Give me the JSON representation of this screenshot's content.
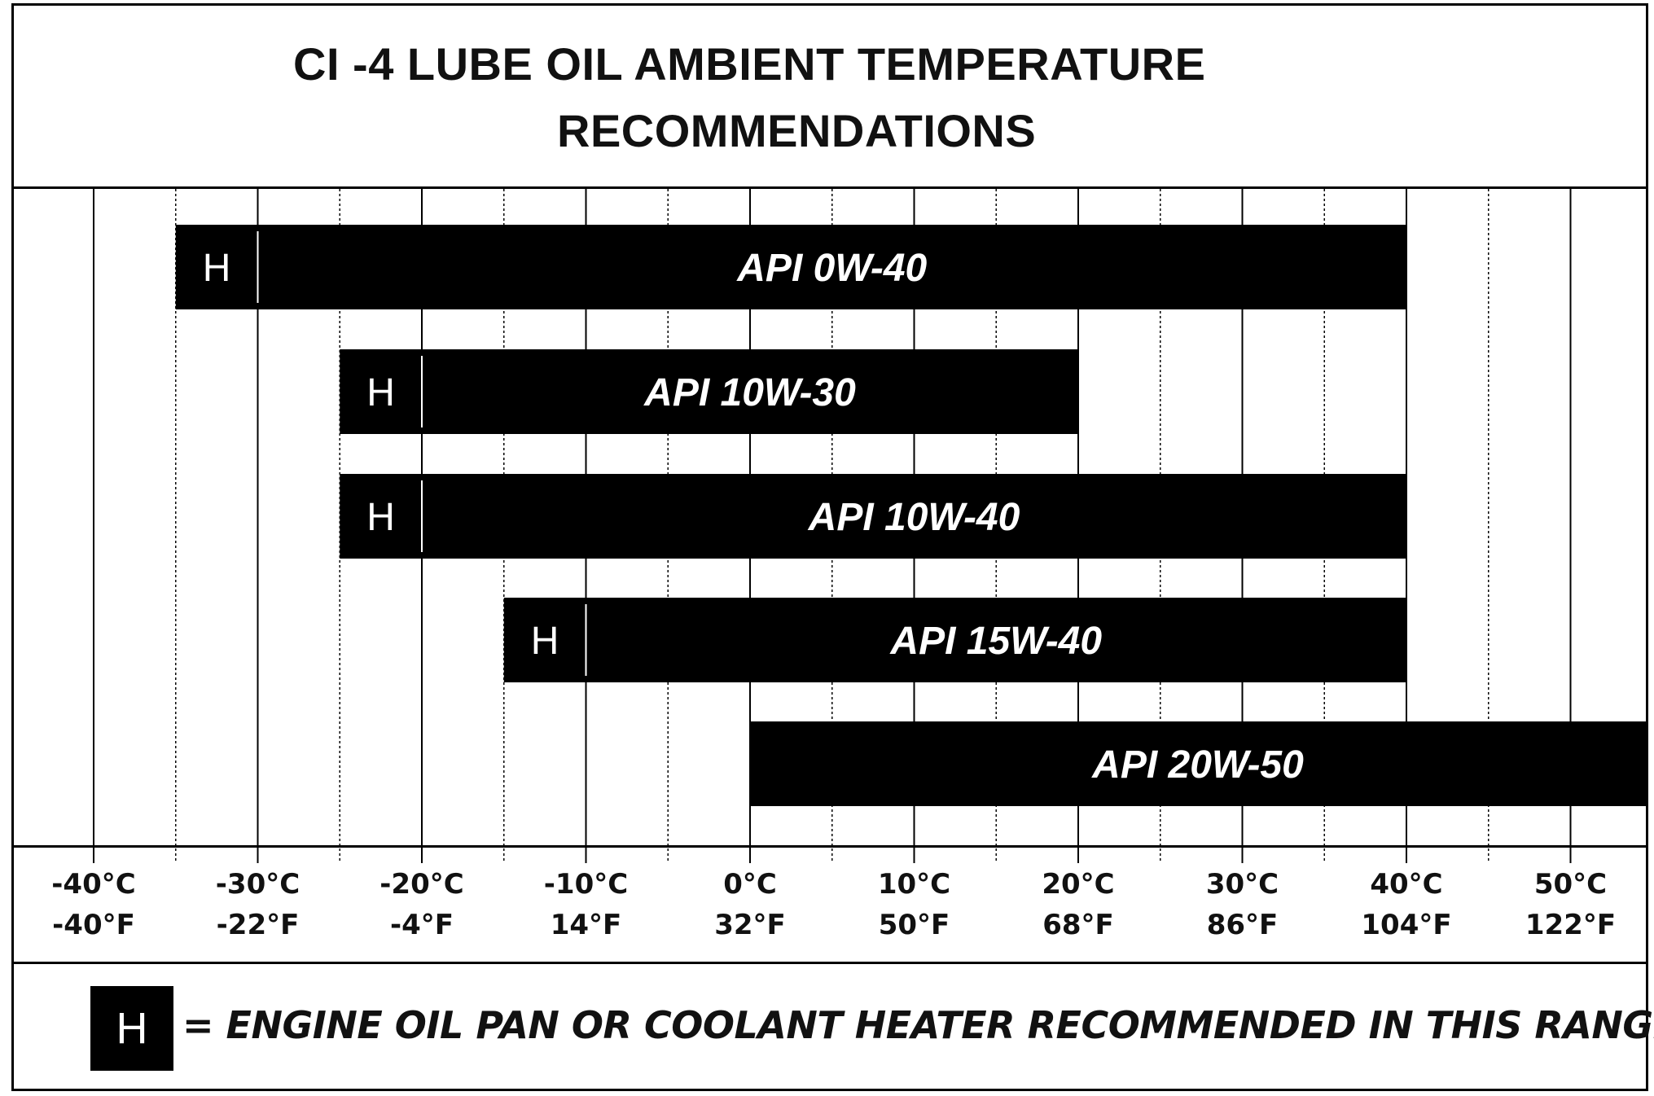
{
  "chart_data": {
    "type": "bar",
    "orientation": "horizontal-range",
    "title": "CI -4 LUBE OIL AMBIENT TEMPERATURE RECOMMENDATIONS",
    "title_lines": [
      "CI -4 LUBE OIL AMBIENT TEMPERATURE",
      "RECOMMENDATIONS"
    ],
    "xlim_celsius": [
      -40,
      55
    ],
    "grid": true,
    "ticks_celsius": [
      -40,
      -30,
      -20,
      -10,
      0,
      10,
      20,
      30,
      40,
      50
    ],
    "tick_labels_c": [
      "-40°C",
      "-30°C",
      "-20°C",
      "-10°C",
      "0°C",
      "10°C",
      "20°C",
      "30°C",
      "40°C",
      "50°C"
    ],
    "tick_labels_f": [
      "-40°F",
      "-22°F",
      "-4°F",
      "14°F",
      "32°F",
      "50°F",
      "68°F",
      "86°F",
      "104°F",
      "122°F"
    ],
    "series": [
      {
        "name": "API 0W-40",
        "min_c": -35,
        "max_c": 40,
        "heater_below_c": -30
      },
      {
        "name": "API 10W-30",
        "min_c": -25,
        "max_c": 20,
        "heater_below_c": -20
      },
      {
        "name": "API 10W-40",
        "min_c": -25,
        "max_c": 40,
        "heater_below_c": -20
      },
      {
        "name": "API 15W-40",
        "min_c": -15,
        "max_c": 40,
        "heater_below_c": -10
      },
      {
        "name": "API 20W-50",
        "min_c": 0,
        "max_c": 55,
        "heater_below_c": null
      }
    ],
    "heater_marker": "H",
    "legend": {
      "marker": "H",
      "text": "= ENGINE OIL PAN OR COOLANT HEATER RECOMMENDED IN THIS RANGE",
      "placement": "bottom"
    }
  },
  "colors": {
    "bar": "#000000",
    "text": "#111111",
    "background": "#ffffff",
    "bar_text": "#ffffff"
  }
}
